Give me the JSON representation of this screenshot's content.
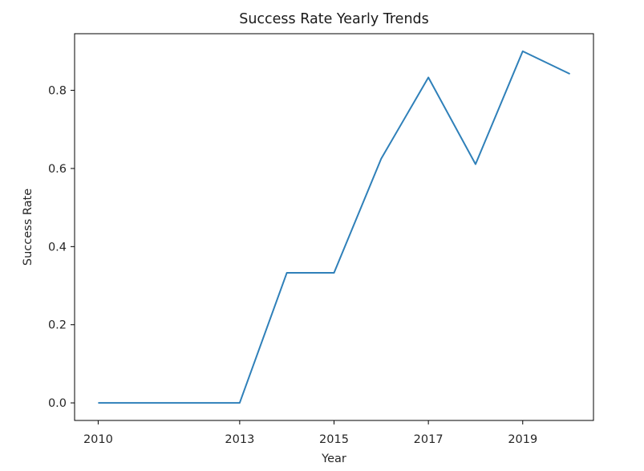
{
  "chart_data": {
    "type": "line",
    "title": "Success Rate Yearly Trends",
    "xlabel": "Year",
    "ylabel": "Success Rate",
    "x": [
      2010,
      2011,
      2012,
      2013,
      2014,
      2015,
      2016,
      2017,
      2018,
      2019,
      2020
    ],
    "series": [
      {
        "values": [
          0.0,
          0.0,
          0.0,
          0.0,
          0.333,
          0.333,
          0.625,
          0.833,
          0.611,
          0.9,
          0.842
        ],
        "color": "#2f80b9"
      }
    ],
    "x_ticks": [
      "2010",
      "2013",
      "2015",
      "2017",
      "2019"
    ],
    "y_ticks": [
      "0.0",
      "0.2",
      "0.4",
      "0.6",
      "0.8"
    ],
    "xlim": [
      2009.5,
      2020.5
    ],
    "ylim": [
      -0.045,
      0.945
    ],
    "grid": false
  }
}
